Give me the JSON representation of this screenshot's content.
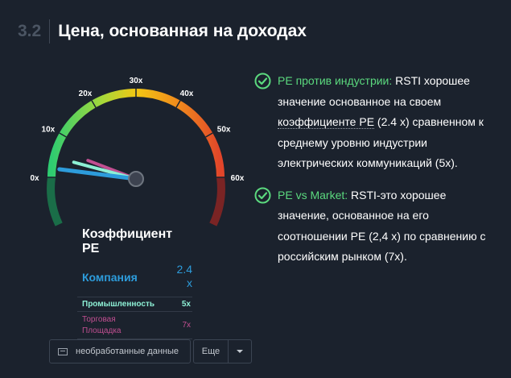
{
  "header": {
    "number": "3.2",
    "title": "Цена, основанная на доходах"
  },
  "gauge": {
    "ticks": [
      "0x",
      "10x",
      "20x",
      "30x",
      "40x",
      "50x",
      "60x"
    ],
    "max": 60,
    "company_value": 2.4,
    "industry_value": 5,
    "market_value": 7,
    "colors": {
      "company": "#2d9cdb",
      "industry": "#8df0d5",
      "market": "#c14f91"
    }
  },
  "stats": {
    "title": "Коэффициент PE",
    "company": {
      "label": "Компания",
      "value": "2.4 x"
    },
    "industry": {
      "label": "Промышленность",
      "value": "5x"
    },
    "market": {
      "label": "Торговая Площадка",
      "value": "7x"
    }
  },
  "buttons": {
    "raw_data": "необработанные данные",
    "more": "Еще"
  },
  "checks": [
    {
      "highlight": "PE против индустрии:",
      "text_1": " RSTI хорошее значение основанное на своем ",
      "underlined": "коэффициенте PE",
      "text_2": " (2.4 x) сравненном к среднему уровню индустрии электрических коммуникаций (5x)."
    },
    {
      "highlight": "PE vs Market:",
      "text_1": " RSTI-это хорошее значение, основанное на его соотношении PE (2,4 x) по сравнению с российским рынком (7x)."
    }
  ]
}
